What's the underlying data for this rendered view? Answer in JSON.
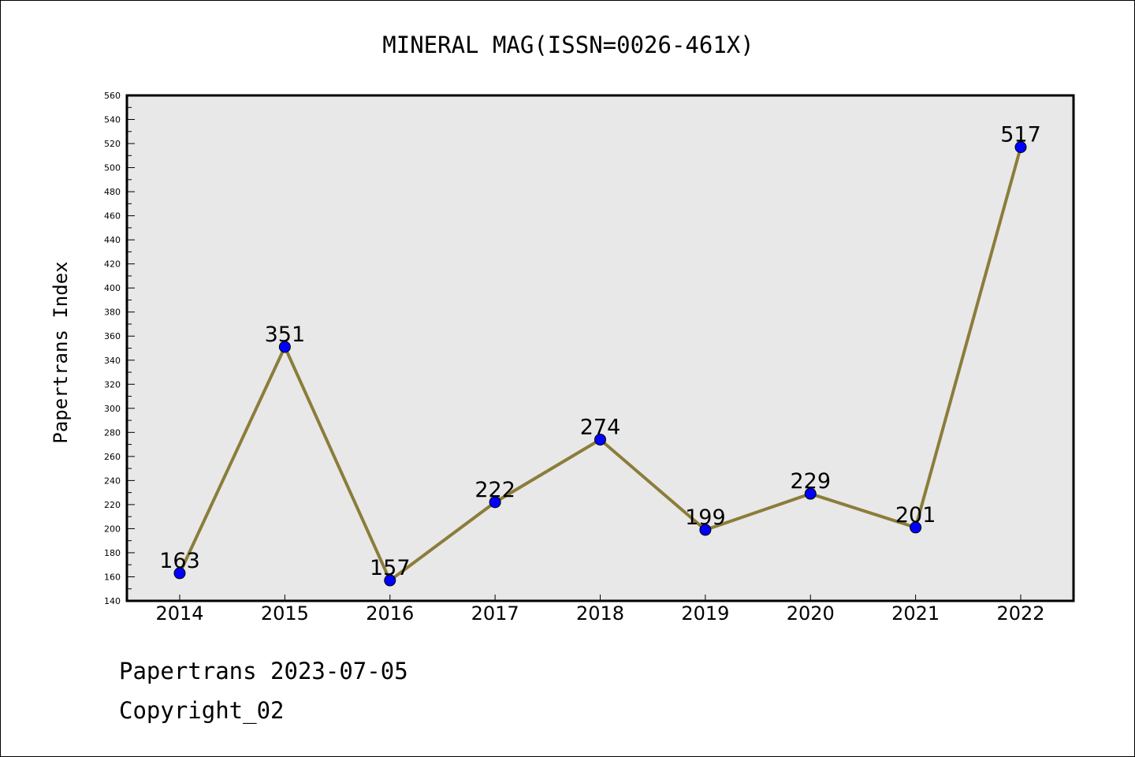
{
  "chart_data": {
    "type": "line",
    "title": "MINERAL MAG(ISSN=0026-461X)",
    "xlabel": "",
    "ylabel": "Papertrans Index",
    "categories": [
      "2014",
      "2015",
      "2016",
      "2017",
      "2018",
      "2019",
      "2020",
      "2021",
      "2022"
    ],
    "series": [
      {
        "values": [
          163,
          351,
          157,
          222,
          274,
          199,
          229,
          201,
          517
        ]
      }
    ],
    "ylim": [
      140,
      560
    ],
    "ytick_step": 20,
    "grid": false,
    "legend": "none",
    "colors": {
      "line": "#8b7d3a",
      "marker": "#0000ff",
      "plot_background": "#e8e8e8",
      "axes": "#000000"
    }
  },
  "footer": {
    "line1": "Papertrans 2023-07-05",
    "line2": "Copyright_02"
  }
}
